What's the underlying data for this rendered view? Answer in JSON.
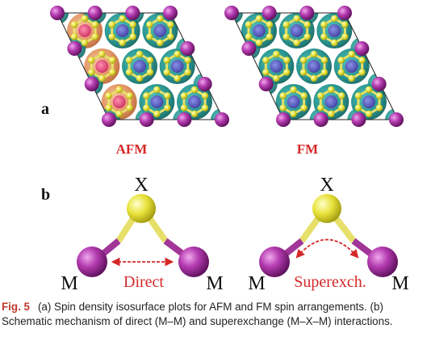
{
  "panel_a": {
    "letter": "a",
    "left": {
      "label": "AFM",
      "modes": [
        "orange",
        "teal",
        "teal",
        "orange",
        "teal",
        "teal",
        "orange",
        "teal",
        "teal"
      ]
    },
    "right": {
      "label": "FM",
      "modes": [
        "teal",
        "teal",
        "teal",
        "teal",
        "teal",
        "teal",
        "teal",
        "teal",
        "teal"
      ]
    }
  },
  "panel_b": {
    "letter": "b",
    "left": {
      "x": "X",
      "m_left": "M",
      "m_right": "M",
      "mechanism": "Direct"
    },
    "right": {
      "x": "X",
      "m_left": "M",
      "m_right": "M",
      "mechanism": "Superexch."
    }
  },
  "caption": {
    "fig": "Fig. 5",
    "text": "(a) Spin density isosurface plots for AFM and FM spin arrangements. (b) Schematic mechanism of direct (M–M) and superexchange (M–X–M) interactions."
  },
  "colors": {
    "metal": "#9b2a96",
    "chalcogen": "#e7e03a",
    "teal": "#1f8f8a",
    "orange": "#e0905a",
    "arrow": "#d62828",
    "bond_x": "#e6e06a",
    "bond_m": "#a23598"
  }
}
